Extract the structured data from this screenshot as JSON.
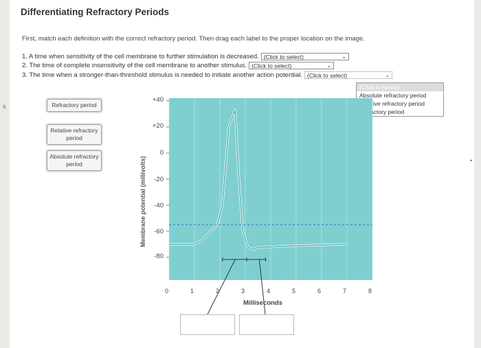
{
  "title": "Differentiating Refractory Periods",
  "instructions": "First, match each definition with the correct refractory period. Then drag each label to the proper location on the image.",
  "questions": [
    {
      "text": "1. A time when sensitivity of the cell membrane to further stimulation is decreased.",
      "select": "(Click to select)"
    },
    {
      "text": "2. The time of complete insensitivity of the cell membrane to another stimulus.",
      "select": "(Click to select)"
    },
    {
      "text": "3. The time when a stronger-than-threshold stimulus is needed to initiate another action potential.",
      "select": "(Click to select)"
    }
  ],
  "dropdown_options": [
    "(Click to select)",
    "Absolute refractory period",
    "Relative refractory period",
    "Refractory period"
  ],
  "labels": [
    "Refractory period",
    "Relative refractory period",
    "Absolute refractory period"
  ],
  "side_mark": "s",
  "chart_data": {
    "type": "line",
    "ylabel": "Membrane potential (millivolts)",
    "xlabel": "Milliseconds",
    "yticks": [
      "+40",
      "+20",
      "0",
      "-20",
      "-40",
      "-60",
      "-80"
    ],
    "xticks": [
      "0",
      "1",
      "2",
      "3",
      "4",
      "5",
      "6",
      "7",
      "8"
    ],
    "xlim": [
      0,
      8
    ],
    "ylim": [
      -90,
      40
    ],
    "threshold": -55,
    "x": [
      0,
      0.5,
      1,
      1.3,
      1.6,
      1.9,
      2.1,
      2.35,
      2.6,
      2.75,
      2.9,
      3.1,
      3.25,
      3.4,
      3.6,
      4,
      5,
      7
    ],
    "y": [
      -70,
      -70,
      -70,
      -67,
      -61,
      -55,
      -40,
      20,
      33,
      -20,
      -60,
      -72,
      -74,
      -73,
      -72,
      -72,
      -71,
      -70
    ],
    "colors": {
      "plot_bg": "#7fcfd0",
      "line": "#4fb3b3",
      "threshold": "#3a7fd0",
      "grid": "#c9e9e9"
    }
  }
}
